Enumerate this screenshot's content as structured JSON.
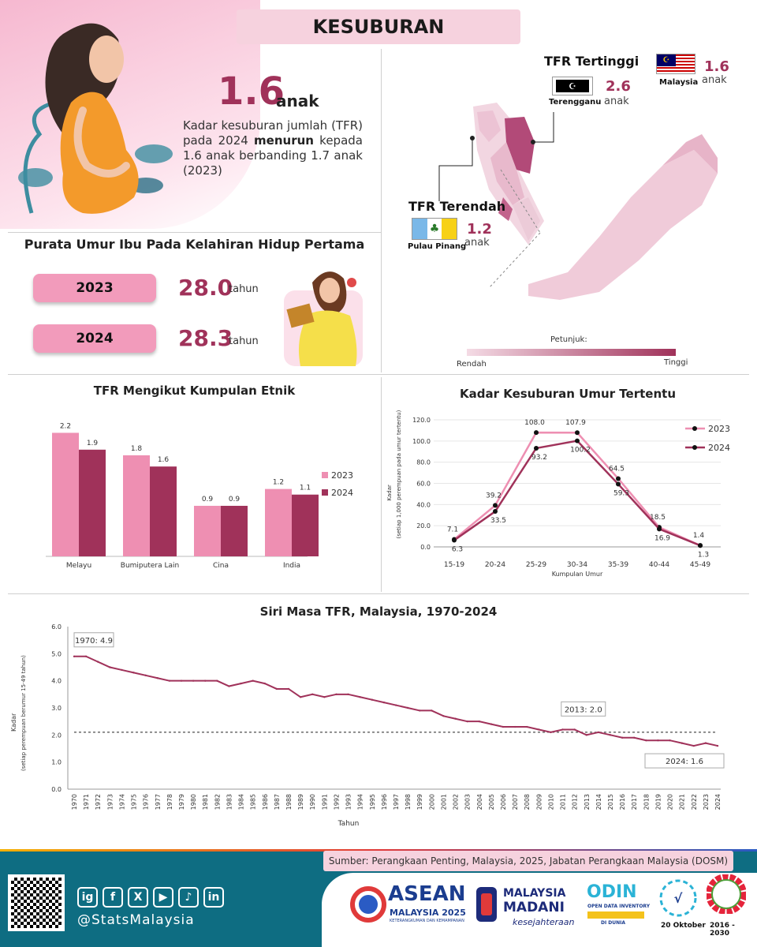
{
  "title": "KESUBURAN",
  "hero": {
    "value": "1.6",
    "unit": "anak",
    "desc_1": "Kadar kesuburan jumlah (TFR) pada 2024",
    "desc_bold": "menurun",
    "desc_2": "kepada 1.6 anak berbanding 1.7 anak (2023)"
  },
  "map": {
    "highest_title": "TFR Tertinggi",
    "highest_state": "Terengganu",
    "highest_value": "2.6",
    "highest_unit": "anak",
    "lowest_title": "TFR Terendah",
    "lowest_state": "Pulau Pinang",
    "lowest_value": "1.2",
    "lowest_unit": "anak",
    "national_label": "Malaysia",
    "national_value": "1.6",
    "national_unit": "anak",
    "legend_title": "Petunjuk:",
    "legend_low": "Rendah",
    "legend_high": "Tinggi",
    "colors": {
      "low": "#f4dbe5",
      "high": "#a0325a"
    }
  },
  "mother_age": {
    "title": "Purata Umur Ibu Pada Kelahiran Hidup Pertama",
    "rows": [
      {
        "year": "2023",
        "value": "28.0",
        "unit": "tahun"
      },
      {
        "year": "2024",
        "value": "28.3",
        "unit": "tahun"
      }
    ]
  },
  "chart_data": [
    {
      "type": "bar",
      "title": "TFR Mengikut Kumpulan Etnik",
      "categories": [
        "Melayu",
        "Bumiputera Lain",
        "Cina",
        "India"
      ],
      "series": [
        {
          "name": "2023",
          "values": [
            2.2,
            1.8,
            0.9,
            1.2
          ],
          "color": "#ee8fb2"
        },
        {
          "name": "2024",
          "values": [
            1.9,
            1.6,
            0.9,
            1.1
          ],
          "color": "#a0325a"
        }
      ],
      "ylim": [
        0,
        2.6
      ],
      "legend": "right"
    },
    {
      "type": "line",
      "title": "Kadar Kesuburan Umur Tertentu",
      "categories": [
        "15-19",
        "20-24",
        "25-29",
        "30-34",
        "35-39",
        "40-44",
        "45-49"
      ],
      "series": [
        {
          "name": "2023",
          "values": [
            7.1,
            39.2,
            108.0,
            107.9,
            64.5,
            18.5,
            1.4
          ],
          "color": "#ee8fb2"
        },
        {
          "name": "2024",
          "values": [
            6.3,
            33.5,
            93.2,
            100.2,
            59.3,
            16.9,
            1.3
          ],
          "color": "#a0325a"
        }
      ],
      "xlabel": "Kumpulan Umur",
      "ylabel": "Kadar",
      "ylabel_sub": "(setiap 1,000 perempuan pada umur tertentu)",
      "yticks": [
        "0.0",
        "20.0",
        "40.0",
        "60.0",
        "80.0",
        "100.0",
        "120.0"
      ],
      "ylim": [
        0,
        120
      ],
      "legend": "top-right"
    },
    {
      "type": "line",
      "title": "Siri Masa TFR, Malaysia, 1970-2024",
      "x": [
        1970,
        1971,
        1972,
        1973,
        1974,
        1975,
        1976,
        1977,
        1978,
        1979,
        1980,
        1981,
        1982,
        1983,
        1984,
        1985,
        1986,
        1987,
        1988,
        1989,
        1990,
        1991,
        1992,
        1993,
        1994,
        1995,
        1996,
        1997,
        1998,
        1999,
        2000,
        2001,
        2002,
        2003,
        2004,
        2005,
        2006,
        2007,
        2008,
        2009,
        2010,
        2011,
        2012,
        2013,
        2014,
        2015,
        2016,
        2017,
        2018,
        2019,
        2020,
        2021,
        2022,
        2023,
        2024
      ],
      "series": [
        {
          "name": "TFR",
          "values": [
            4.9,
            4.9,
            4.7,
            4.5,
            4.4,
            4.3,
            4.2,
            4.1,
            4.0,
            4.0,
            4.0,
            4.0,
            4.0,
            3.8,
            3.9,
            4.0,
            3.9,
            3.7,
            3.7,
            3.4,
            3.5,
            3.4,
            3.5,
            3.5,
            3.4,
            3.3,
            3.2,
            3.1,
            3.0,
            2.9,
            2.9,
            2.7,
            2.6,
            2.5,
            2.5,
            2.4,
            2.3,
            2.3,
            2.3,
            2.2,
            2.1,
            2.2,
            2.2,
            2.0,
            2.1,
            2.0,
            1.9,
            1.9,
            1.8,
            1.8,
            1.8,
            1.7,
            1.6,
            1.7,
            1.6
          ],
          "color": "#a0325a"
        }
      ],
      "reference_line": 2.1,
      "annotations": [
        "1970: 4.9",
        "2013: 2.0",
        "2024: 1.6"
      ],
      "xlabel": "Tahun",
      "ylabel": "Kadar",
      "ylabel_sub": "(setiap perempuan berumur 15-49 tahun)",
      "yticks": [
        "0.0",
        "1.0",
        "2.0",
        "3.0",
        "4.0",
        "5.0",
        "6.0"
      ],
      "ylim": [
        0,
        6
      ]
    }
  ],
  "footer": {
    "source": "Sumber: Perangkaan Penting, Malaysia, 2025, Jabatan Perangkaan Malaysia (DOSM)",
    "handle": "@StatsMalaysia",
    "social": [
      "ig",
      "f",
      "X",
      "▶",
      "♪",
      "in"
    ],
    "asean_1": "ASEAN",
    "asean_2": "MALAYSIA 2025",
    "asean_3": "KETERANGKUMAN DAN KEMAMPANAN",
    "madani_1": "MALAYSIA",
    "madani_2": "MADANI",
    "madani_3": "kesejahteraan",
    "odin_1": "ODIN",
    "odin_2": "OPEN DATA INVENTORY",
    "odin_3": "DI DUNIA",
    "stat_day": "20 Oktober",
    "sdg_years": "2016 - 2030"
  }
}
